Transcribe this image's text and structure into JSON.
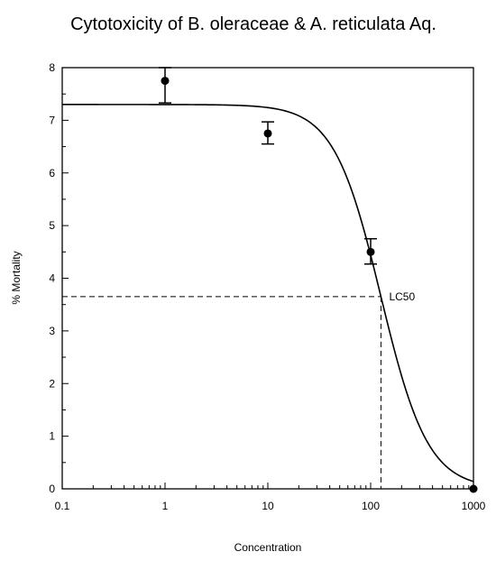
{
  "chart_data": {
    "type": "scatter",
    "title": "Cytotoxicity of B. oleraceae & A. reticulata Aq.",
    "xlabel": "Concentration",
    "ylabel": "% Mortality",
    "x_scale": "log",
    "xlim": [
      0.1,
      1000
    ],
    "ylim": [
      0,
      8
    ],
    "x_ticks": [
      "0.1",
      "1",
      "10",
      "100",
      "1000"
    ],
    "y_ticks": [
      "0",
      "1",
      "2",
      "3",
      "4",
      "5",
      "6",
      "7",
      "8"
    ],
    "grid": false,
    "points": [
      {
        "x": 1,
        "y": 7.75,
        "err_low": 7.33,
        "err_high": 8.0
      },
      {
        "x": 10,
        "y": 6.75,
        "err_low": 6.55,
        "err_high": 6.97
      },
      {
        "x": 100,
        "y": 4.5,
        "err_low": 4.27,
        "err_high": 4.75
      },
      {
        "x": 1000,
        "y": 0
      }
    ],
    "fit_curve": {
      "top": 7.3,
      "bottom": 0,
      "ec50": 126,
      "hill": 1.9
    },
    "annotation": {
      "label": "LC50",
      "x": 126,
      "y": 3.65
    }
  }
}
